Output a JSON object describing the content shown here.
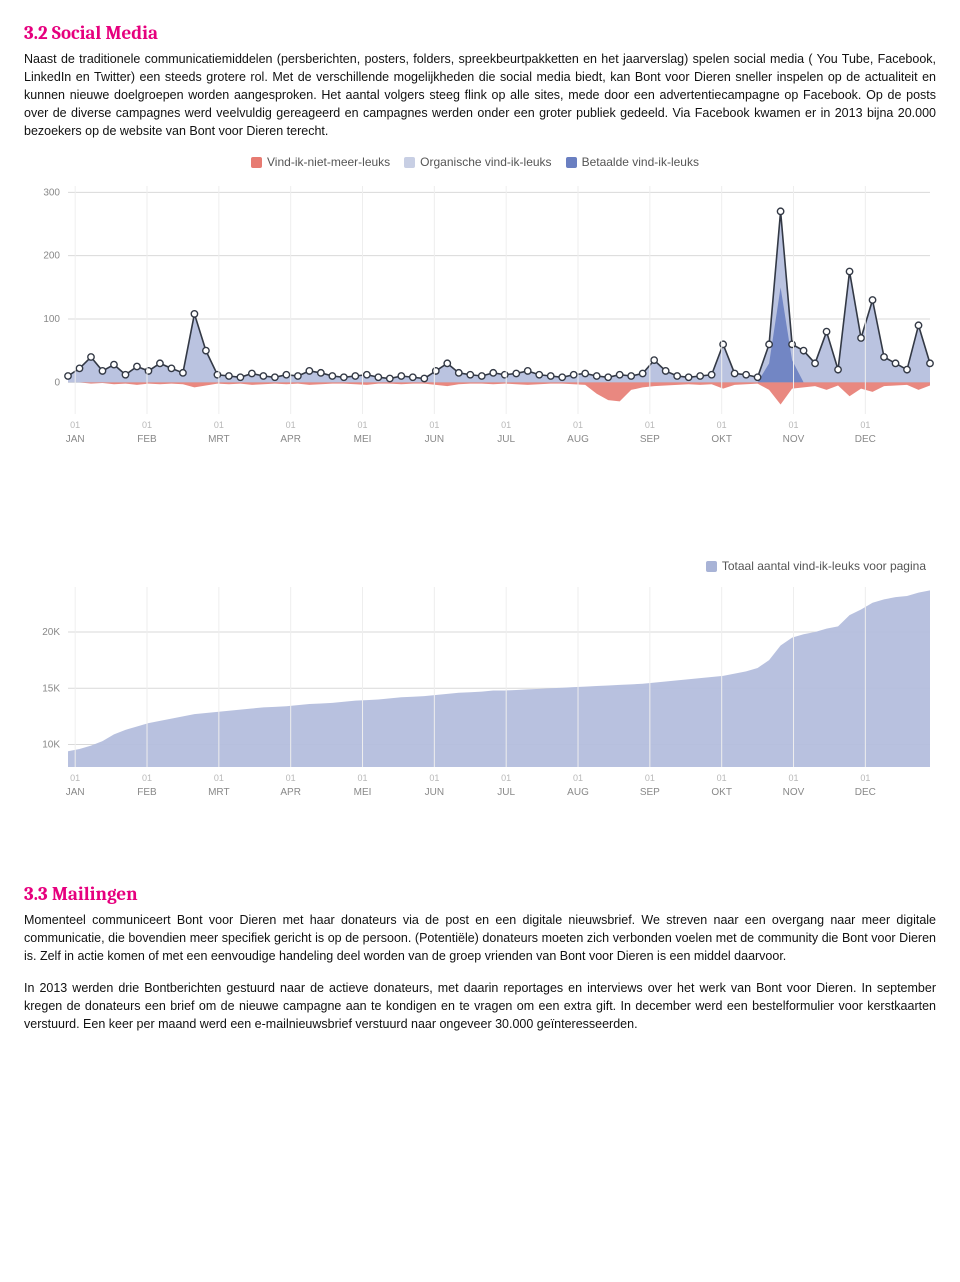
{
  "section1": {
    "heading": "3.2 Social Media",
    "body": "Naast de traditionele communicatiemiddelen  (persberichten, posters, folders, spreekbeurtpakketten en het jaarverslag) spelen social media ( You Tube, Facebook, LinkedIn en Twitter) een steeds grotere rol. Met de verschillende mogelijkheden die social media biedt, kan Bont voor Dieren sneller inspelen op de actualiteit en kunnen nieuwe doelgroepen worden aangesproken. Het aantal volgers steeg flink op alle sites, mede door een advertentiecampagne op Facebook. Op de posts over de diverse campagnes werd veelvuldig gereageerd en campagnes werden onder een groter publiek gedeeld. Via Facebook kwamen er in 2013 bijna 20.000 bezoekers op de website van Bont voor Dieren terecht."
  },
  "chart1": {
    "type": "line+area",
    "legend": [
      {
        "label": "Vind-ik-niet-meer-leuks",
        "color": "#e77b72"
      },
      {
        "label": "Organische vind-ik-leuks",
        "color": "#c8cfe4"
      },
      {
        "label": "Betaalde vind-ik-leuks",
        "color": "#6a7fc1"
      }
    ],
    "yticks": [
      0,
      100,
      200,
      300
    ],
    "ylim": [
      -50,
      310
    ],
    "months": [
      "JAN",
      "FEB",
      "MRT",
      "APR",
      "MEI",
      "JUN",
      "JUL",
      "AUG",
      "SEP",
      "OKT",
      "NOV",
      "DEC"
    ],
    "month_tick_label": "01",
    "line_color": "#333945",
    "area_fill": "#aeb8da",
    "unlike_fill": "#e77b72",
    "paid_fill": "#6a7fc1",
    "marker_fill": "#ffffff",
    "marker_stroke": "#333945",
    "grid_color": "#d9d9d9",
    "values": [
      10,
      22,
      40,
      18,
      28,
      12,
      25,
      18,
      30,
      22,
      15,
      108,
      50,
      12,
      10,
      8,
      14,
      10,
      8,
      12,
      10,
      18,
      15,
      10,
      8,
      10,
      12,
      8,
      6,
      10,
      8,
      6,
      18,
      30,
      15,
      12,
      10,
      15,
      12,
      14,
      18,
      12,
      10,
      8,
      12,
      14,
      10,
      8,
      12,
      10,
      14,
      35,
      18,
      10,
      8,
      10,
      12,
      60,
      14,
      12,
      8,
      60,
      270,
      60,
      50,
      30,
      80,
      20,
      175,
      70,
      130,
      40,
      30,
      20,
      90,
      30
    ],
    "unlikes": [
      0,
      0,
      -2,
      -1,
      -3,
      -2,
      -4,
      -2,
      -3,
      -2,
      -3,
      -8,
      -5,
      -2,
      -3,
      -2,
      -4,
      -3,
      -2,
      -3,
      -2,
      -4,
      -3,
      -2,
      -2,
      -3,
      -4,
      -2,
      -2,
      -3,
      -2,
      -2,
      -4,
      -6,
      -3,
      -2,
      -2,
      -3,
      -2,
      -3,
      -4,
      -3,
      -2,
      -2,
      -3,
      -4,
      -18,
      -28,
      -30,
      -12,
      -8,
      -6,
      -5,
      -4,
      -3,
      -4,
      -3,
      -10,
      -4,
      -3,
      -2,
      -12,
      -35,
      -10,
      -8,
      -6,
      -12,
      -5,
      -22,
      -10,
      -15,
      -6,
      -5,
      -4,
      -12,
      -5
    ],
    "paid": [
      0,
      0,
      0,
      0,
      0,
      0,
      0,
      0,
      0,
      0,
      0,
      0,
      0,
      0,
      0,
      0,
      0,
      0,
      0,
      0,
      0,
      0,
      0,
      0,
      0,
      0,
      0,
      0,
      0,
      0,
      0,
      0,
      0,
      0,
      0,
      0,
      0,
      0,
      0,
      0,
      0,
      0,
      0,
      0,
      0,
      0,
      0,
      0,
      0,
      0,
      0,
      0,
      0,
      0,
      0,
      0,
      0,
      0,
      0,
      0,
      0,
      30,
      150,
      35,
      0,
      0,
      0,
      0,
      0,
      0,
      0,
      0,
      0,
      0,
      0,
      0
    ]
  },
  "chart2": {
    "type": "area",
    "legend": [
      {
        "label": "Totaal aantal vind-ik-leuks voor pagina",
        "color": "#a8b3d6"
      }
    ],
    "yticks": [
      10000,
      15000,
      20000
    ],
    "ytick_labels": [
      "10K",
      "15K",
      "20K"
    ],
    "ylim": [
      8000,
      24000
    ],
    "months": [
      "JAN",
      "FEB",
      "MRT",
      "APR",
      "MEI",
      "JUN",
      "JUL",
      "AUG",
      "SEP",
      "OKT",
      "NOV",
      "DEC"
    ],
    "month_tick_label": "01",
    "area_fill": "#b4bedd",
    "grid_color": "#d9d9d9",
    "values": [
      9400,
      9600,
      9900,
      10300,
      10900,
      11300,
      11600,
      11900,
      12100,
      12300,
      12500,
      12700,
      12800,
      12900,
      13000,
      13100,
      13200,
      13300,
      13350,
      13400,
      13500,
      13600,
      13650,
      13700,
      13800,
      13900,
      13950,
      14000,
      14100,
      14200,
      14250,
      14300,
      14400,
      14500,
      14600,
      14650,
      14700,
      14800,
      14800,
      14850,
      14900,
      14950,
      15000,
      15050,
      15100,
      15150,
      15200,
      15250,
      15300,
      15350,
      15400,
      15500,
      15600,
      15700,
      15800,
      15900,
      16000,
      16100,
      16300,
      16500,
      16800,
      17500,
      18800,
      19500,
      19800,
      20000,
      20300,
      20500,
      21500,
      22000,
      22600,
      22900,
      23100,
      23200,
      23500,
      23700
    ]
  },
  "section2": {
    "heading": "3.3 Mailingen",
    "body1": "Momenteel communiceert Bont voor Dieren met haar donateurs via de post en een digitale nieuwsbrief. We streven naar een overgang naar meer digitale communicatie, die bovendien meer specifiek gericht is op de persoon. (Potentiële) donateurs moeten zich verbonden voelen met de community die Bont voor Dieren is. Zelf in actie komen of met een eenvoudige handeling deel worden van de groep vrienden van Bont voor Dieren is een middel daarvoor.",
    "body2": "In 2013 werden drie Bontberichten gestuurd naar de actieve donateurs, met daarin reportages en interviews over het werk van Bont voor Dieren. In september kregen de donateurs een brief om de nieuwe campagne aan te kondigen en te vragen om een extra gift. In december werd een bestelformulier voor kerstkaarten verstuurd. Een keer per maand werd een e-mailnieuwsbrief verstuurd naar ongeveer 30.000 geïnteresseerden."
  }
}
